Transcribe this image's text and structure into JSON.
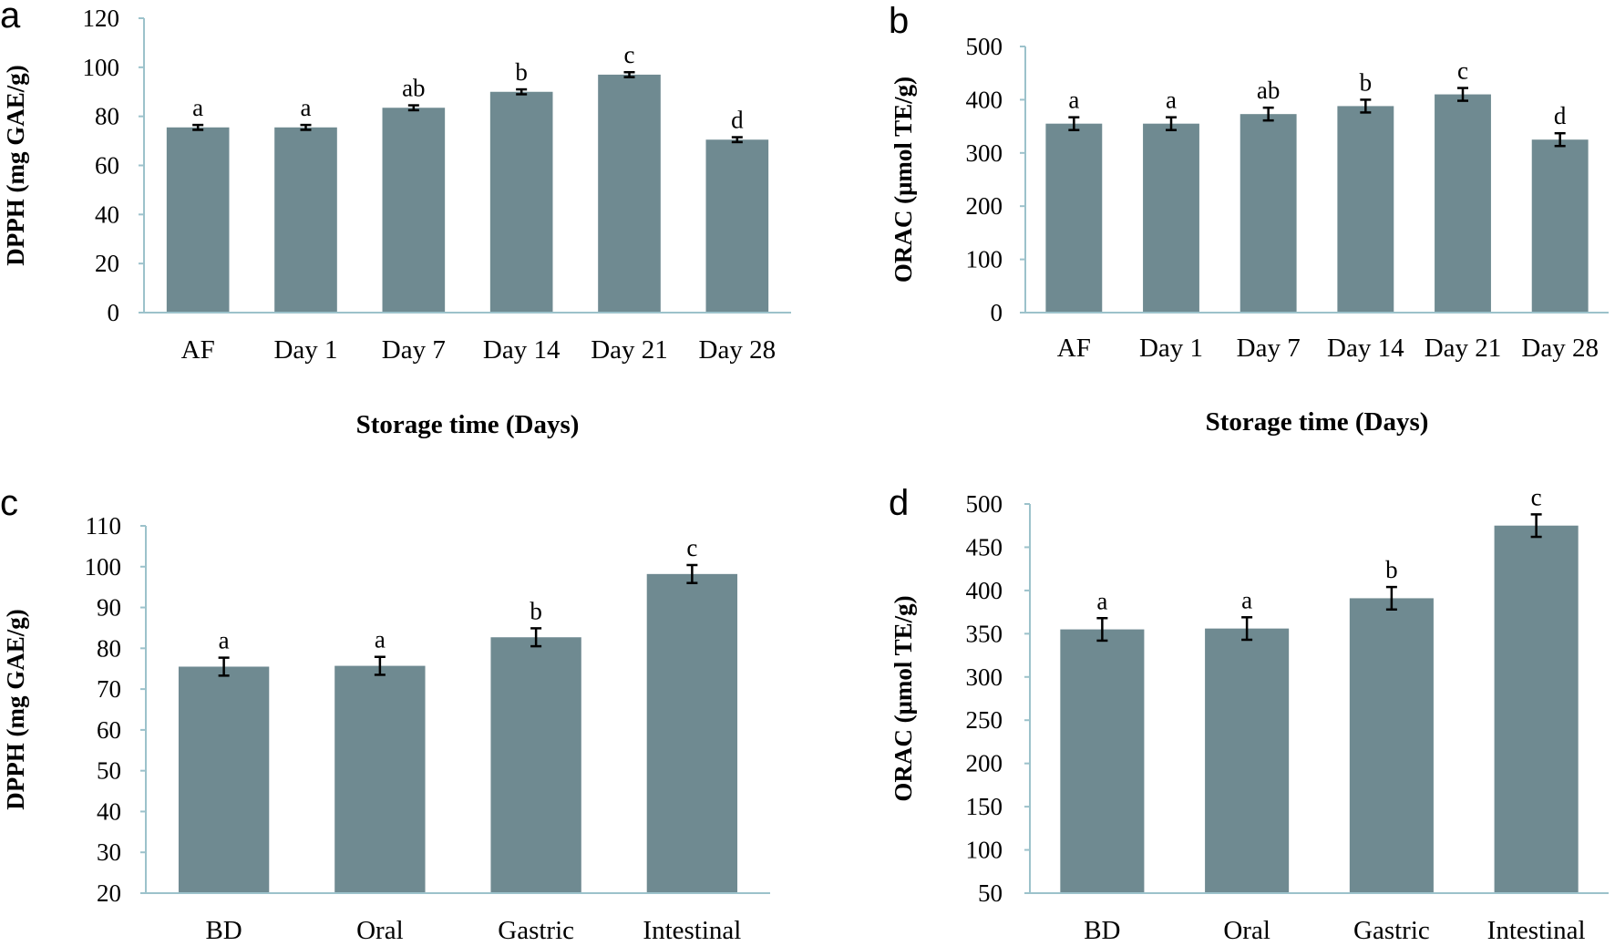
{
  "figure": {
    "background": "#ffffff",
    "bar_color": "#6f8a91",
    "axis_color": "#9cc2cb",
    "error_color": "#000000"
  },
  "chart_data": [
    {
      "panel": "a",
      "type": "bar",
      "categories": [
        "AF",
        "Day 1",
        "Day 7",
        "Day 14",
        "Day 21",
        "Day 28"
      ],
      "values": [
        75.5,
        75.5,
        83.5,
        90,
        97,
        70.5
      ],
      "errors": [
        1,
        1,
        1,
        1,
        1,
        1
      ],
      "significance": [
        "a",
        "a",
        "ab",
        "b",
        "c",
        "d"
      ],
      "ylabel": "DPPH  (mg GAE/g)",
      "xlabel": "Storage time (Days)",
      "ylim": [
        0,
        120
      ],
      "yticks": [
        0,
        20,
        40,
        60,
        80,
        100,
        120
      ],
      "grid": false,
      "legend": "none"
    },
    {
      "panel": "b",
      "type": "bar",
      "categories": [
        "AF",
        "Day 1",
        "Day 7",
        "Day 14",
        "Day 21",
        "Day 28"
      ],
      "values": [
        355,
        355,
        373,
        388,
        410,
        325
      ],
      "errors": [
        12,
        12,
        12,
        12,
        12,
        12
      ],
      "significance": [
        "a",
        "a",
        "ab",
        "b",
        "c",
        "d"
      ],
      "ylabel": "ORAC (μmol TE/g)",
      "xlabel": "Storage time (Days)",
      "ylim": [
        0,
        500
      ],
      "yticks": [
        0,
        100,
        200,
        300,
        400,
        500
      ],
      "grid": false,
      "legend": "none"
    },
    {
      "panel": "c",
      "type": "bar",
      "categories": [
        "BD",
        "Oral",
        "Gastric",
        "Intestinal"
      ],
      "values": [
        75.5,
        75.7,
        82.7,
        98.2
      ],
      "errors": [
        2.2,
        2.2,
        2.2,
        2.2
      ],
      "significance": [
        "a",
        "a",
        "b",
        "c"
      ],
      "ylabel": "DPPH (mg GAE/g)",
      "xlabel": "",
      "ylim": [
        20,
        110
      ],
      "yticks": [
        20,
        30,
        40,
        50,
        60,
        70,
        80,
        90,
        100,
        110
      ],
      "grid": false,
      "legend": "none"
    },
    {
      "panel": "d",
      "type": "bar",
      "categories": [
        "BD",
        "Oral",
        "Gastric",
        "Intestinal"
      ],
      "values": [
        355,
        356,
        391,
        475
      ],
      "errors": [
        13,
        13,
        13,
        13
      ],
      "significance": [
        "a",
        "a",
        "b",
        "c"
      ],
      "ylabel": "ORAC (μmol TE/g)",
      "xlabel": "",
      "ylim": [
        50,
        500
      ],
      "yticks": [
        50,
        100,
        150,
        200,
        250,
        300,
        350,
        400,
        450,
        500
      ],
      "grid": false,
      "legend": "none"
    }
  ]
}
